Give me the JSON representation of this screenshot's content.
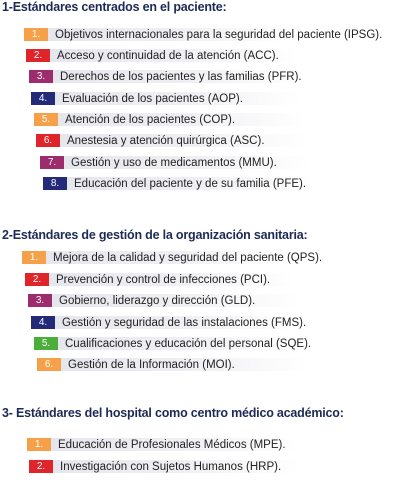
{
  "colors": {
    "orange": "#f6a14a",
    "red": "#e0252a",
    "magenta": "#9c2c6b",
    "navy": "#232a7a",
    "green": "#4cae3a",
    "heading": "#1d2a55"
  },
  "sections": [
    {
      "heading": "1-Estándares centrados en el paciente:",
      "items": [
        {
          "num": "1.",
          "color": "#f6a14a",
          "label": "Objetivos internacionales para la seguridad del paciente (IPSG)."
        },
        {
          "num": "2.",
          "color": "#e0252a",
          "label": "Acceso y continuidad de la atención (ACC)."
        },
        {
          "num": "3.",
          "color": "#9c2c6b",
          "label": "Derechos de los pacientes y las familias (PFR)."
        },
        {
          "num": "4.",
          "color": "#232a7a",
          "label": "Evaluación de los pacientes (AOP)."
        },
        {
          "num": "5.",
          "color": "#f6a14a",
          "label": "Atención de los pacientes (COP)."
        },
        {
          "num": "6.",
          "color": "#e0252a",
          "label": "Anestesia y atención quirúrgica (ASC)."
        },
        {
          "num": "7.",
          "color": "#9c2c6b",
          "label": "Gestión y uso de medicamentos (MMU)."
        },
        {
          "num": "8.",
          "color": "#232a7a",
          "label": "Educación del paciente y de su familia (PFE)."
        }
      ]
    },
    {
      "heading": "2-Estándares de gestión de la organización sanitaria:",
      "items": [
        {
          "num": "1.",
          "color": "#f6a14a",
          "label": "Mejora de la calidad y seguridad del paciente (QPS)."
        },
        {
          "num": "2.",
          "color": "#e0252a",
          "label": "Prevención y control de infecciones (PCI)."
        },
        {
          "num": "3.",
          "color": "#9c2c6b",
          "label": "Gobierno, liderazgo y dirección (GLD)."
        },
        {
          "num": "4.",
          "color": "#232a7a",
          "label": "Gestión y seguridad de las instalaciones (FMS)."
        },
        {
          "num": "5.",
          "color": "#4cae3a",
          "label": "Cualificaciones y educación del personal (SQE)."
        },
        {
          "num": "6.",
          "color": "#f6a14a",
          "label": "Gestión de la Información (MOI)."
        }
      ]
    },
    {
      "heading": "3- Estándares del hospital como centro médico académico:",
      "items": [
        {
          "num": "1.",
          "color": "#f6a14a",
          "label": "Educación de Profesionales Médicos (MPE)."
        },
        {
          "num": "2.",
          "color": "#e0252a",
          "label": "Investigación con Sujetos Humanos (HRP)."
        }
      ]
    }
  ]
}
